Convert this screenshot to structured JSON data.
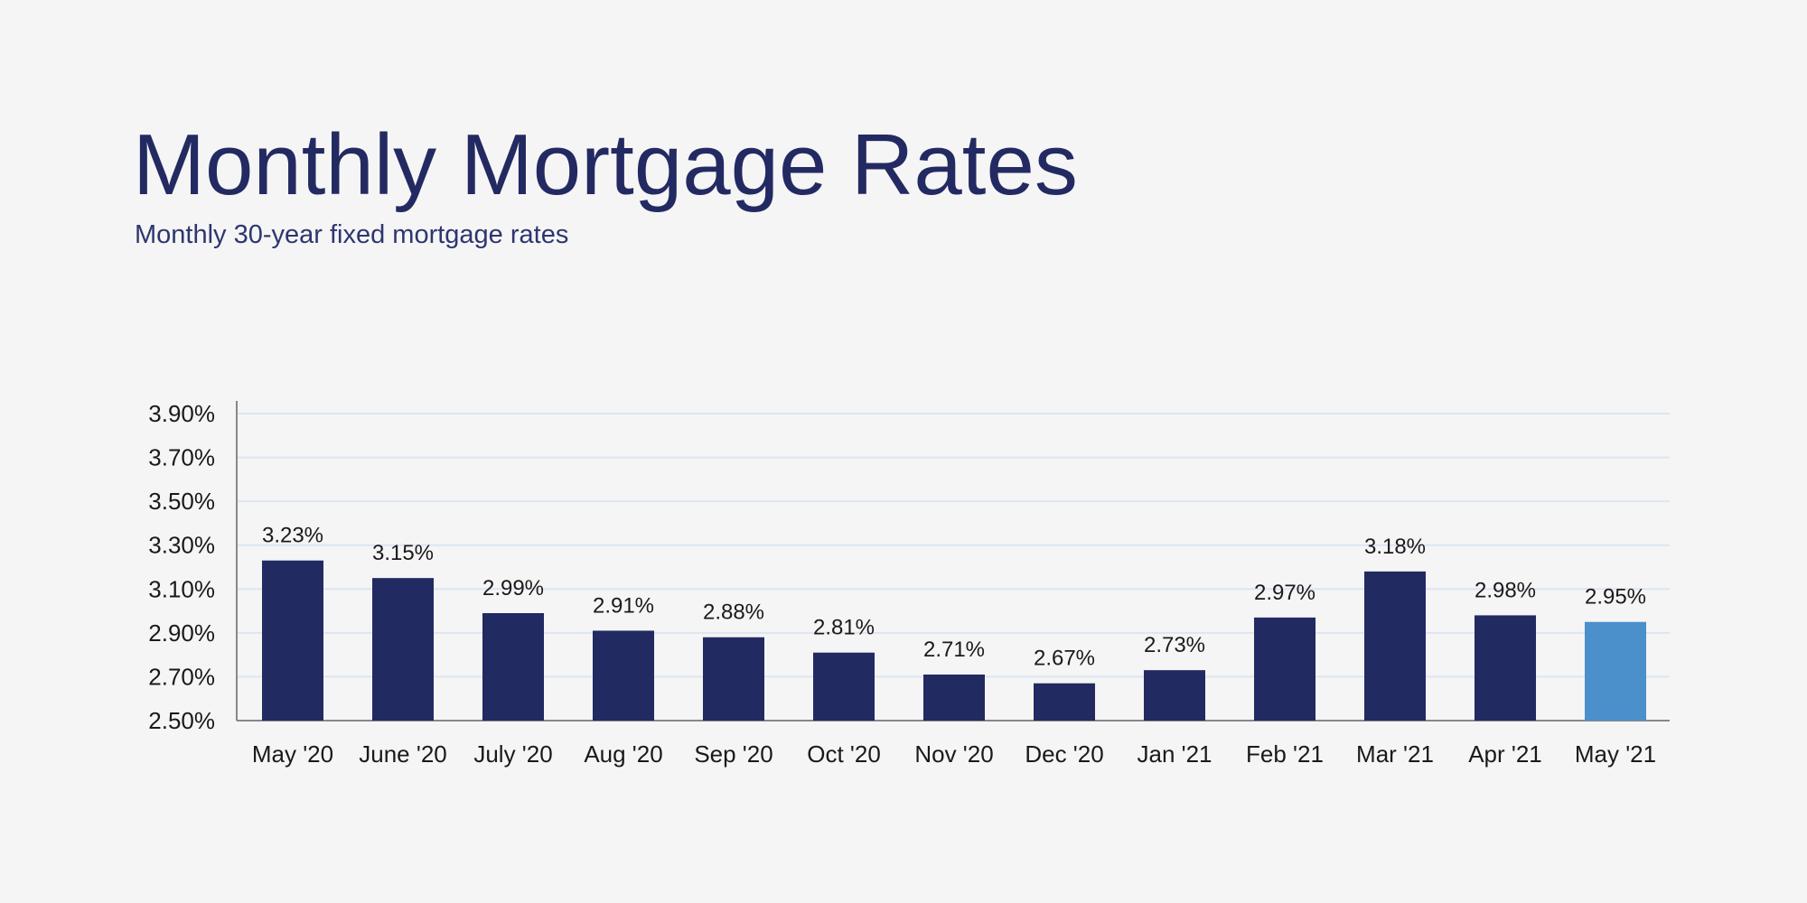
{
  "chart_data": {
    "type": "bar",
    "title": "Monthly Mortgage Rates",
    "subtitle": "Monthly 30-year fixed mortgage rates",
    "xlabel": "",
    "ylabel": "",
    "categories": [
      "May '20",
      "June '20",
      "July '20",
      "Aug '20",
      "Sep '20",
      "Oct '20",
      "Nov '20",
      "Dec '20",
      "Jan '21",
      "Feb '21",
      "Mar '21",
      "Apr '21",
      "May '21"
    ],
    "values": [
      3.23,
      3.15,
      2.99,
      2.91,
      2.88,
      2.81,
      2.71,
      2.67,
      2.73,
      2.97,
      3.18,
      2.98,
      2.95
    ],
    "data_labels": [
      "3.23%",
      "3.15%",
      "2.99%",
      "2.91%",
      "2.88%",
      "2.81%",
      "2.71%",
      "2.67%",
      "2.73%",
      "2.97%",
      "3.18%",
      "2.98%",
      "2.95%"
    ],
    "ylim": [
      2.5,
      3.9
    ],
    "yticks": [
      2.5,
      2.7,
      2.9,
      3.1,
      3.3,
      3.5,
      3.7,
      3.9
    ],
    "ytick_labels": [
      "2.50%",
      "2.70%",
      "2.90%",
      "3.10%",
      "3.30%",
      "3.50%",
      "3.70%",
      "3.90%"
    ],
    "grid": true,
    "legend": "none",
    "colors": {
      "bar": "#222a62",
      "highlight": "#4b8fcb",
      "grid": "#dde5f2",
      "axis": "#888888"
    },
    "highlight_index": 12
  }
}
